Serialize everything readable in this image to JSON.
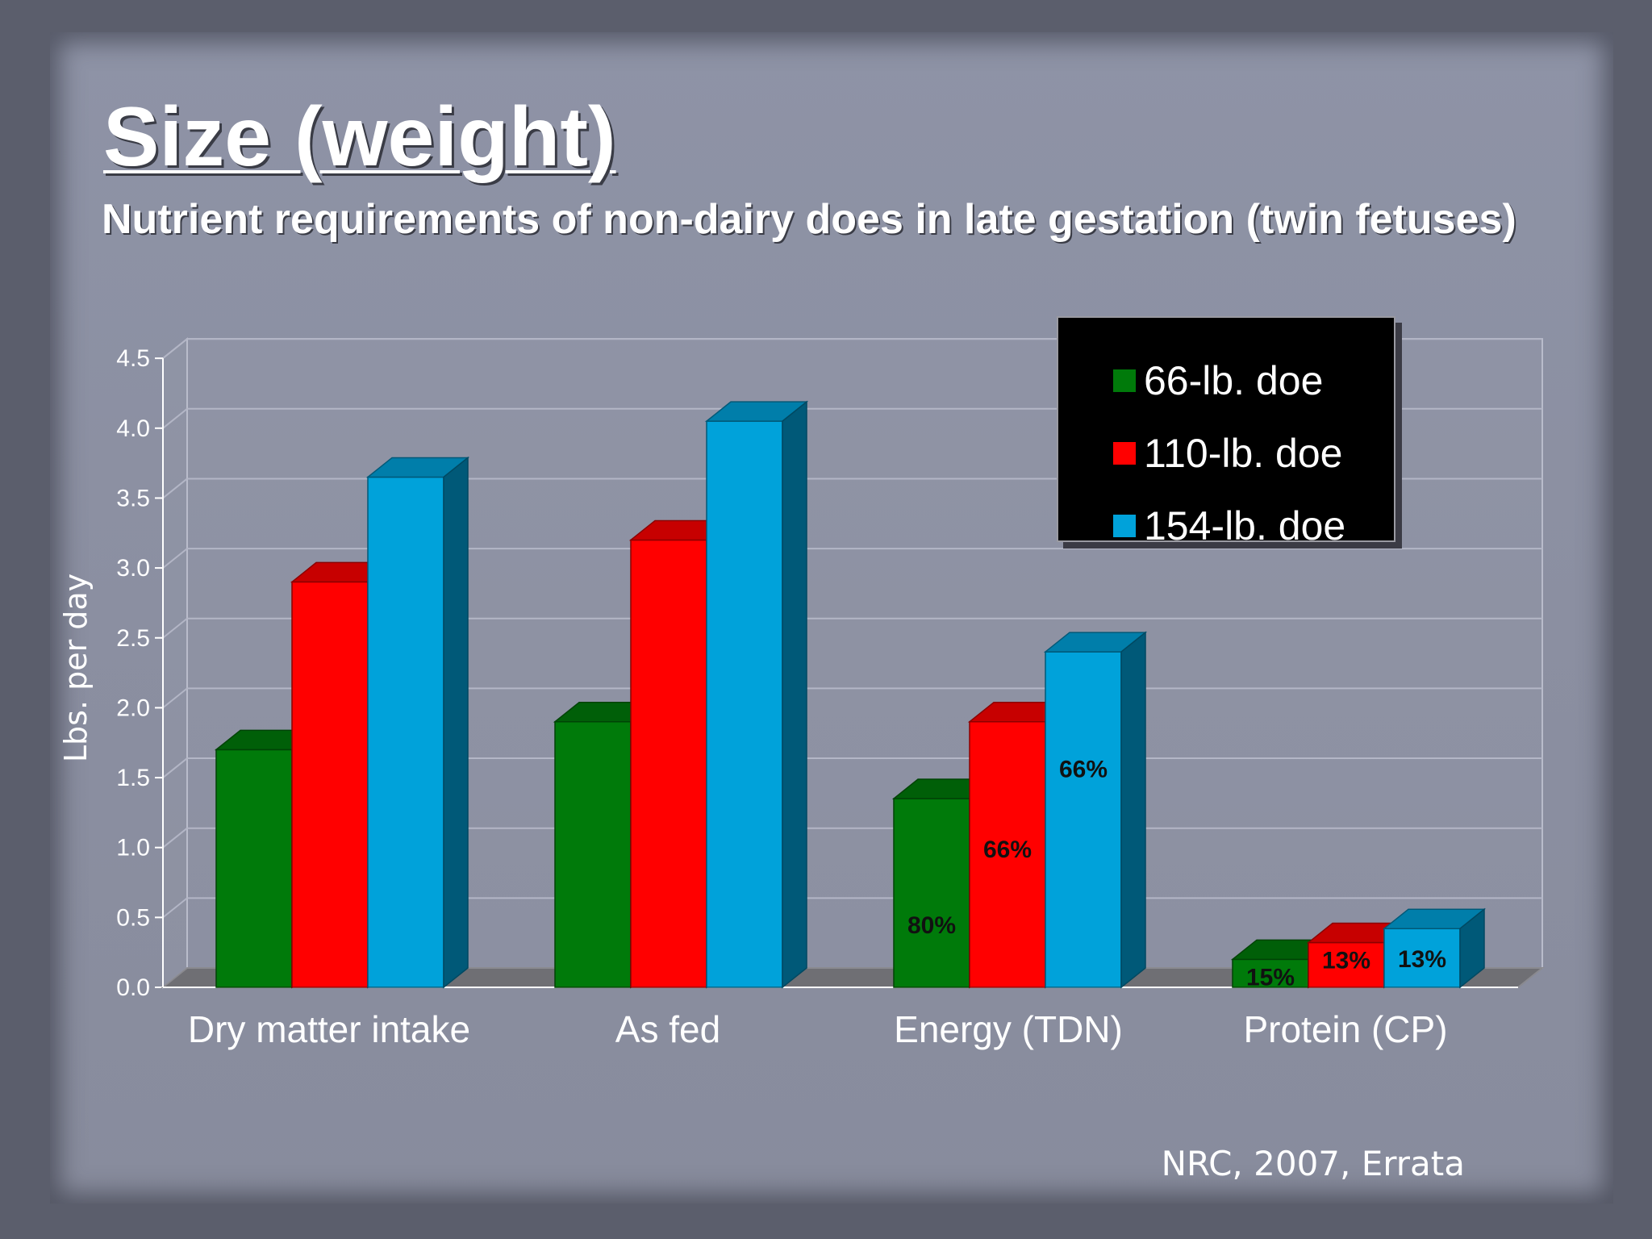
{
  "slide": {
    "title": "Size (weight)",
    "subtitle": "Nutrient requirements of non-dairy does in late gestation (twin fetuses)",
    "source": "NRC, 2007, Errata"
  },
  "chart_data": {
    "type": "bar",
    "title": "",
    "xlabel": "",
    "ylabel": "Lbs. per day",
    "ylim": [
      0,
      4.5
    ],
    "yticks": [
      "0.0",
      "0.5",
      "1.0",
      "1.5",
      "2.0",
      "2.5",
      "3.0",
      "3.5",
      "4.0",
      "4.5"
    ],
    "grid": true,
    "legend_position": "top-right",
    "categories": [
      "Dry matter intake",
      "As fed",
      "Energy (TDN)",
      "Protein (CP)"
    ],
    "series": [
      {
        "name": "66-lb. doe",
        "color": "#007a0a",
        "values": [
          1.7,
          1.9,
          1.35,
          0.2
        ],
        "labels": [
          "",
          "",
          "80%",
          "15%"
        ]
      },
      {
        "name": "110-lb. doe",
        "color": "#ff0000",
        "values": [
          2.9,
          3.2,
          1.9,
          0.32
        ],
        "labels": [
          "",
          "",
          "66%",
          "13%"
        ]
      },
      {
        "name": "154-lb. doe",
        "color": "#00a2da",
        "values": [
          3.65,
          4.05,
          2.4,
          0.42
        ],
        "labels": [
          "",
          "",
          "66%",
          "13%"
        ]
      }
    ]
  }
}
